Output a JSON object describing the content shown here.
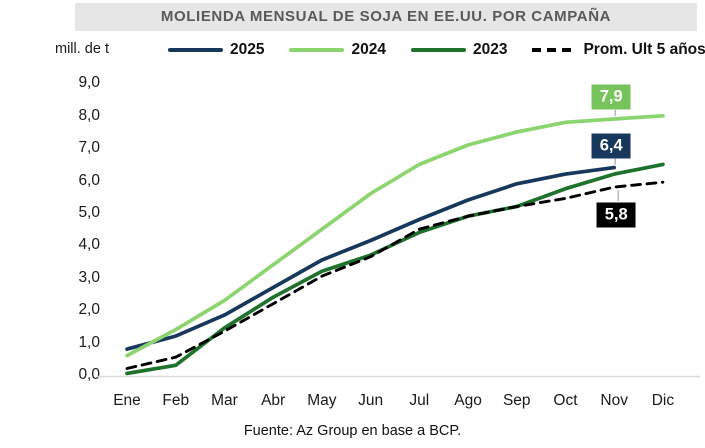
{
  "title": "MOLIENDA MENSUAL DE SOJA EN EE.UU. POR CAMPAÑA",
  "unit_label": "mill. de t",
  "source": "Fuente: Az Group en base a BCP.",
  "colors": {
    "title_bar_bg": "#E7E6E6",
    "title_text": "#595959",
    "axis_line": "#D9D9D9",
    "leader_line": "#A6A6A6",
    "navy": "#17375D",
    "light_green": "#8BD46F",
    "dark_green": "#1E722C",
    "black": "#000000"
  },
  "chart_data": {
    "type": "line",
    "title": "MOLIENDA MENSUAL DE SOJA EN EE.UU. POR CAMPAÑA",
    "ylabel": "mill. de t",
    "ylim": [
      0,
      9
    ],
    "grid": false,
    "legend_position": "top",
    "categories": [
      "Ene",
      "Feb",
      "Mar",
      "Abr",
      "May",
      "Jun",
      "Jul",
      "Ago",
      "Sep",
      "Oct",
      "Nov",
      "Dic"
    ],
    "ytick_labels": [
      "9,0",
      "8,0",
      "7,0",
      "6,0",
      "5,0",
      "4,0",
      "3,0",
      "2,0",
      "1,0",
      "0,0"
    ],
    "series": [
      {
        "name": "2025",
        "color": "#17375D",
        "style": "solid",
        "values": [
          0.8,
          1.2,
          1.85,
          2.7,
          3.55,
          4.15,
          4.8,
          5.4,
          5.9,
          6.2,
          6.4
        ]
      },
      {
        "name": "2024",
        "color": "#8BD46F",
        "style": "solid",
        "values": [
          0.6,
          1.4,
          2.3,
          3.4,
          4.5,
          5.6,
          6.5,
          7.1,
          7.5,
          7.8,
          7.9,
          8.0
        ]
      },
      {
        "name": "2023",
        "color": "#1E722C",
        "style": "solid",
        "values": [
          0.05,
          0.3,
          1.45,
          2.4,
          3.2,
          3.7,
          4.4,
          4.9,
          5.2,
          5.75,
          6.2,
          6.5
        ]
      },
      {
        "name": "Prom. Ult 5 años",
        "color": "#000000",
        "style": "dashed",
        "values": [
          0.2,
          0.55,
          1.35,
          2.2,
          3.05,
          3.65,
          4.5,
          4.9,
          5.2,
          5.45,
          5.8,
          5.95
        ]
      }
    ],
    "end_labels": [
      {
        "text": "7,9",
        "bg": "#76C45B",
        "fg": "#FFFFFF",
        "series": "2024",
        "month": "Nov",
        "placement": "above"
      },
      {
        "text": "6,4",
        "bg": "#17375D",
        "fg": "#FFFFFF",
        "series": "2025",
        "month": "Nov",
        "placement": "above"
      },
      {
        "text": "5,8",
        "bg": "#000000",
        "fg": "#FFFFFF",
        "series": "Prom. Ult 5 años",
        "month": "Nov",
        "placement": "below"
      }
    ]
  }
}
